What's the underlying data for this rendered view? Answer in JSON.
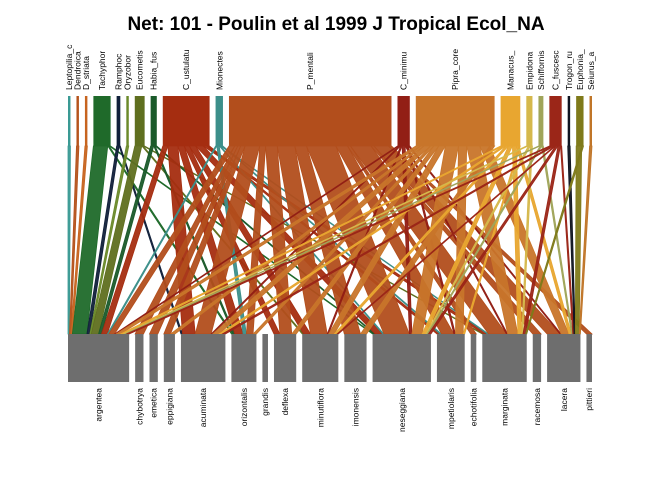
{
  "title": "Net: 101 - Poulin et al 1999 J Tropical Ecol_NA",
  "higher": [
    {
      "label": "Leptopilia_c",
      "color": "#3a9a94",
      "w": 2
    },
    {
      "label": "Dendroica",
      "color": "#b5531c",
      "w": 2
    },
    {
      "label": "D_striata",
      "color": "#c7641f",
      "w": 2
    },
    {
      "label": "Tachyphor",
      "color": "#1f6a2a",
      "w": 14
    },
    {
      "label": "Ramphoc",
      "color": "#11203a",
      "w": 3
    },
    {
      "label": "Oryzobor",
      "color": "#6b8a2a",
      "w": 2
    },
    {
      "label": "Eucometis",
      "color": "#5f6f1f",
      "w": 8
    },
    {
      "label": "Habia_fus",
      "color": "#1a5a2a",
      "w": 5
    },
    {
      "label": "C_ustulatu",
      "color": "#a52d10",
      "w": 38
    },
    {
      "label": "Mionectes",
      "color": "#3c8f8a",
      "w": 6
    },
    {
      "label": "P_mentali",
      "color": "#b24e1c",
      "w": 132
    },
    {
      "label": "C_minimu",
      "color": "#921f15",
      "w": 10
    },
    {
      "label": "Pipra_core",
      "color": "#c8752a",
      "w": 64
    },
    {
      "label": "Manacus_",
      "color": "#e8a630",
      "w": 16
    },
    {
      "label": "Empidona",
      "color": "#d5b84c",
      "w": 5
    },
    {
      "label": "Schiffornis",
      "color": "#a0a55a",
      "w": 4
    },
    {
      "label": "C_fuscesc",
      "color": "#9b2618",
      "w": 10
    },
    {
      "label": "Trogon_ru",
      "color": "#0f1420",
      "w": 2
    },
    {
      "label": "Euphonia_",
      "color": "#7f7a1a",
      "w": 6
    },
    {
      "label": "Seiurus_a",
      "color": "#c07528",
      "w": 2
    }
  ],
  "lower": [
    {
      "label": "argentea",
      "w": 44
    },
    {
      "label": "chybotrya",
      "w": 6
    },
    {
      "label": "emetica",
      "w": 6
    },
    {
      "label": "eppigiana",
      "w": 8
    },
    {
      "label": "acuminata",
      "w": 32
    },
    {
      "label": "orizontalis",
      "w": 18
    },
    {
      "label": "grandis",
      "w": 4
    },
    {
      "label": "deflexa",
      "w": 16
    },
    {
      "label": "minutiflora",
      "w": 26
    },
    {
      "label": "imonensis",
      "w": 16
    },
    {
      "label": "neseggiana",
      "w": 42
    },
    {
      "label": "mpetiolaris",
      "w": 20
    },
    {
      "label": "echotifolia",
      "w": 4
    },
    {
      "label": "marginata",
      "w": 32
    },
    {
      "label": "racemosa",
      "w": 6
    },
    {
      "label": "lacera",
      "w": 24
    },
    {
      "label": "pittieri",
      "w": 4
    }
  ],
  "links": [
    [
      0,
      0,
      1
    ],
    [
      1,
      0,
      1
    ],
    [
      2,
      0,
      1
    ],
    [
      3,
      0,
      10
    ],
    [
      3,
      5,
      1
    ],
    [
      3,
      10,
      1
    ],
    [
      4,
      0,
      2
    ],
    [
      4,
      4,
      1
    ],
    [
      5,
      0,
      1
    ],
    [
      6,
      0,
      5
    ],
    [
      6,
      8,
      1
    ],
    [
      6,
      13,
      1
    ],
    [
      7,
      0,
      2
    ],
    [
      7,
      5,
      1
    ],
    [
      7,
      10,
      1
    ],
    [
      8,
      0,
      4
    ],
    [
      8,
      4,
      8
    ],
    [
      8,
      5,
      5
    ],
    [
      8,
      7,
      4
    ],
    [
      8,
      8,
      5
    ],
    [
      8,
      10,
      6
    ],
    [
      8,
      13,
      3
    ],
    [
      8,
      11,
      2
    ],
    [
      9,
      0,
      1
    ],
    [
      9,
      5,
      2
    ],
    [
      9,
      10,
      1
    ],
    [
      9,
      13,
      1
    ],
    [
      9,
      11,
      1
    ],
    [
      10,
      0,
      4
    ],
    [
      10,
      1,
      2
    ],
    [
      10,
      2,
      2
    ],
    [
      10,
      3,
      3
    ],
    [
      10,
      4,
      10
    ],
    [
      10,
      5,
      4
    ],
    [
      10,
      7,
      8
    ],
    [
      10,
      8,
      12
    ],
    [
      10,
      9,
      8
    ],
    [
      10,
      10,
      20
    ],
    [
      10,
      11,
      8
    ],
    [
      10,
      12,
      2
    ],
    [
      10,
      13,
      14
    ],
    [
      10,
      14,
      2
    ],
    [
      10,
      15,
      10
    ],
    [
      10,
      16,
      2
    ],
    [
      11,
      0,
      1
    ],
    [
      11,
      4,
      1
    ],
    [
      11,
      8,
      1
    ],
    [
      11,
      10,
      2
    ],
    [
      11,
      13,
      1
    ],
    [
      11,
      11,
      1
    ],
    [
      11,
      15,
      1
    ],
    [
      12,
      0,
      3
    ],
    [
      12,
      3,
      2
    ],
    [
      12,
      4,
      4
    ],
    [
      12,
      5,
      2
    ],
    [
      12,
      7,
      3
    ],
    [
      12,
      8,
      4
    ],
    [
      12,
      10,
      8
    ],
    [
      12,
      11,
      5
    ],
    [
      12,
      13,
      8
    ],
    [
      12,
      15,
      6
    ],
    [
      12,
      9,
      3
    ],
    [
      13,
      0,
      2
    ],
    [
      13,
      4,
      2
    ],
    [
      13,
      8,
      2
    ],
    [
      13,
      10,
      3
    ],
    [
      13,
      13,
      3
    ],
    [
      13,
      15,
      2
    ],
    [
      13,
      11,
      1
    ],
    [
      14,
      0,
      1
    ],
    [
      14,
      10,
      1
    ],
    [
      14,
      13,
      1
    ],
    [
      15,
      0,
      1
    ],
    [
      15,
      10,
      1
    ],
    [
      15,
      15,
      1
    ],
    [
      16,
      0,
      2
    ],
    [
      16,
      4,
      2
    ],
    [
      16,
      8,
      1
    ],
    [
      16,
      10,
      2
    ],
    [
      16,
      13,
      2
    ],
    [
      16,
      15,
      1
    ],
    [
      17,
      15,
      1
    ],
    [
      18,
      15,
      3
    ],
    [
      18,
      13,
      1
    ],
    [
      19,
      15,
      1
    ]
  ]
}
